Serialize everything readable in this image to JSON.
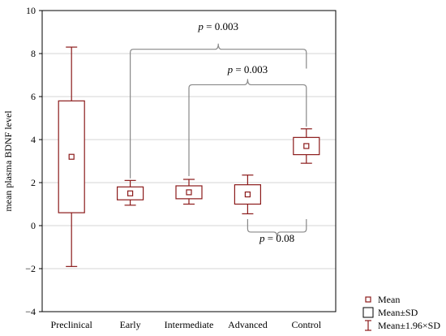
{
  "chart_data": {
    "type": "box",
    "ylabel": "mean plasma BDNF level",
    "xlabel": "",
    "ylim": [
      -4,
      10
    ],
    "yticks": [
      -4,
      -2,
      0,
      2,
      4,
      6,
      8,
      10
    ],
    "grid": "horizontal",
    "categories": [
      "Preclinical",
      "Early",
      "Intermediate",
      "Advanced",
      "Control"
    ],
    "series": [
      {
        "category": "Preclinical",
        "mean": 3.2,
        "sd_low": 0.6,
        "sd_high": 5.8,
        "ci_low": -1.9,
        "ci_high": 8.3
      },
      {
        "category": "Early",
        "mean": 1.5,
        "sd_low": 1.2,
        "sd_high": 1.8,
        "ci_low": 0.95,
        "ci_high": 2.1
      },
      {
        "category": "Intermediate",
        "mean": 1.55,
        "sd_low": 1.25,
        "sd_high": 1.85,
        "ci_low": 1.0,
        "ci_high": 2.15
      },
      {
        "category": "Advanced",
        "mean": 1.45,
        "sd_low": 1.0,
        "sd_high": 1.9,
        "ci_low": 0.55,
        "ci_high": 2.35
      },
      {
        "category": "Control",
        "mean": 3.7,
        "sd_low": 3.3,
        "sd_high": 4.1,
        "ci_low": 2.9,
        "ci_high": 4.5
      }
    ],
    "annotations": [
      {
        "p_italic": "p",
        "text": " = 0.003",
        "from": "Early",
        "to": "Control"
      },
      {
        "p_italic": "p",
        "text": " = 0.003",
        "from": "Intermediate",
        "to": "Control"
      },
      {
        "p_italic": "p",
        "text": " = 0.08",
        "from": "Advanced",
        "to": "Control"
      }
    ],
    "legend": {
      "position": "bottom-right",
      "items": [
        {
          "label": "Mean",
          "symbol": "square"
        },
        {
          "label": "Mean±SD",
          "symbol": "box"
        },
        {
          "label": "Mean±1.96×SD",
          "symbol": "whisker"
        }
      ]
    },
    "colors": {
      "box": "#8b1a1a",
      "bracket": "#888888",
      "grid": "#d4d4d4"
    }
  }
}
